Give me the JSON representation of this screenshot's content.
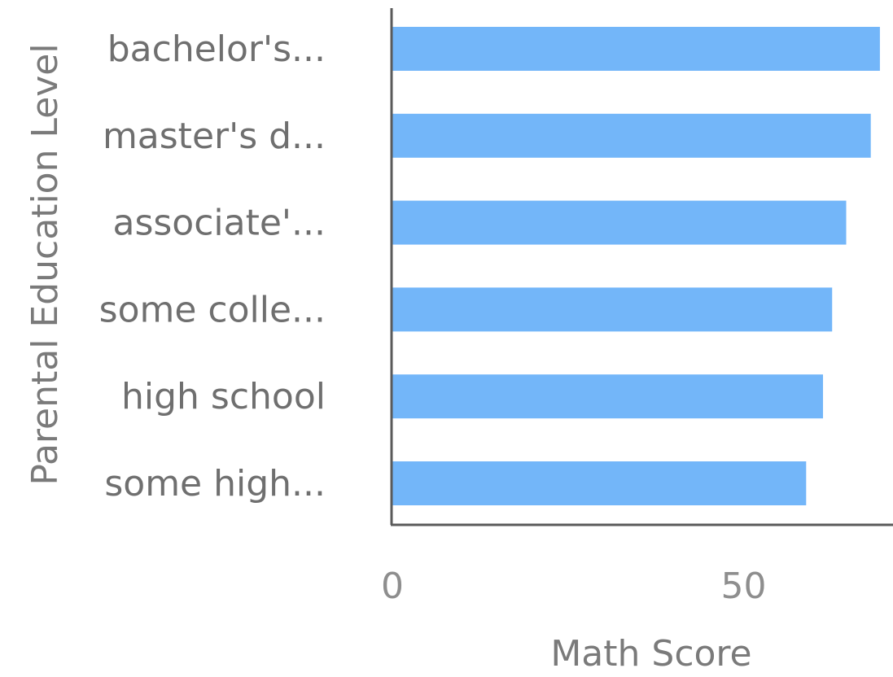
{
  "chart_data": {
    "type": "bar",
    "orientation": "horizontal",
    "categories": [
      "bachelor's...",
      "master's d...",
      "associate'...",
      "some colle...",
      "high school",
      "some high..."
    ],
    "values": [
      69.4,
      68.1,
      64.6,
      62.6,
      61.3,
      58.9
    ],
    "xlabel": "Math Score",
    "ylabel": "Parental Education Level",
    "x_ticks": [
      0,
      50
    ],
    "xlim": [
      0,
      70
    ],
    "grid": false,
    "legend": "none",
    "bar_color": "#73b6f9",
    "axis_color": "#5a5a5a"
  }
}
